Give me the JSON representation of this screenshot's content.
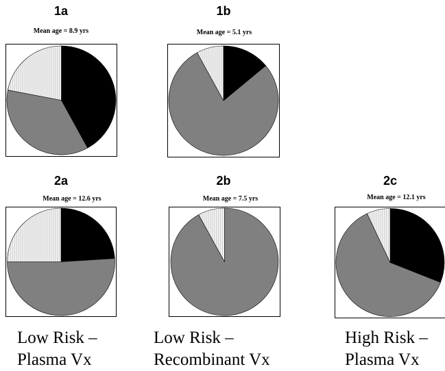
{
  "colors": {
    "black_slice": "#000000",
    "gray_slice": "#808080",
    "light_slice": "#f2f2f2",
    "stripe": "#b5b5b5"
  },
  "chart_data": [
    {
      "type": "pie",
      "title": "1a",
      "subtitle": "Mean age = 8.9 yrs",
      "slices": [
        {
          "fill": "black",
          "value": 42
        },
        {
          "fill": "gray",
          "value": 36
        },
        {
          "fill": "light",
          "value": 22
        }
      ]
    },
    {
      "type": "pie",
      "title": "1b",
      "subtitle": "Mean age = 5.1 yrs",
      "slices": [
        {
          "fill": "black",
          "value": 14
        },
        {
          "fill": "gray",
          "value": 78
        },
        {
          "fill": "light",
          "value": 8
        }
      ]
    },
    {
      "type": "pie",
      "title": "2a",
      "subtitle": "Mean age = 12.6  yrs",
      "slices": [
        {
          "fill": "black",
          "value": 24
        },
        {
          "fill": "gray",
          "value": 51
        },
        {
          "fill": "light",
          "value": 25
        }
      ]
    },
    {
      "type": "pie",
      "title": "2b",
      "subtitle": "Mean age = 7.5 yrs",
      "slices": [
        {
          "fill": "black",
          "value": 0
        },
        {
          "fill": "gray",
          "value": 92
        },
        {
          "fill": "light",
          "value": 8
        }
      ]
    },
    {
      "type": "pie",
      "title": "2c",
      "subtitle": "Mean age = 12.1 yrs",
      "slices": [
        {
          "fill": "black",
          "value": 31
        },
        {
          "fill": "gray",
          "value": 62
        },
        {
          "fill": "light",
          "value": 7
        }
      ]
    }
  ],
  "group_labels": [
    {
      "line1": "Low Risk –",
      "line2": "Plasma Vx"
    },
    {
      "line1": "Low Risk –",
      "line2": "Recombinant Vx"
    },
    {
      "line1": "High Risk –",
      "line2": "Plasma Vx"
    }
  ]
}
